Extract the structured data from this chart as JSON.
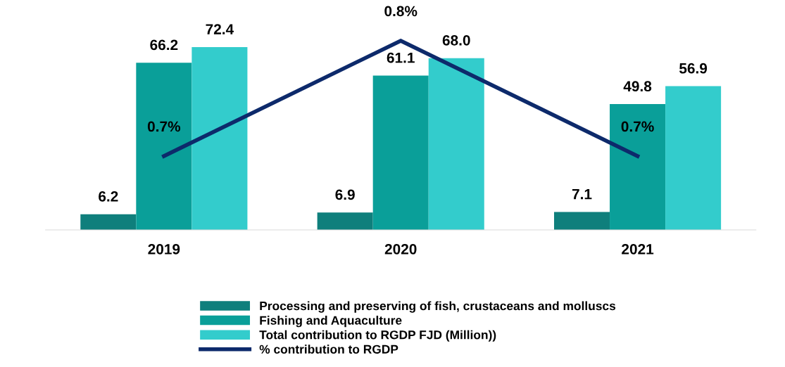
{
  "chart_data": {
    "type": "bar",
    "categories": [
      "2019",
      "2020",
      "2021"
    ],
    "series": [
      {
        "name": "Processing and preserving of fish, crustaceans and molluscs",
        "color": "#0f7f7c",
        "values": [
          6.2,
          6.9,
          7.1
        ]
      },
      {
        "name": "Fishing and Aquaculture",
        "color": "#0a9f99",
        "values": [
          66.2,
          61.1,
          49.8
        ]
      },
      {
        "name": "Total contribution to RGDP FJD (Million))",
        "color": "#33cccc",
        "values": [
          72.4,
          68.0,
          56.9
        ],
        "value_labels": [
          "72.4",
          "68.0",
          "56.9"
        ]
      },
      {
        "name": "% contribution to RGDP",
        "type": "line",
        "axis": "y2",
        "color": "#0d2a6b",
        "values": [
          0.7,
          0.8,
          0.7
        ],
        "value_labels": [
          "0.7%",
          "0.8%",
          "0.7%"
        ]
      }
    ],
    "relative": false,
    "data_labels": true,
    "grid": false,
    "legend": "bottom",
    "marker": "none",
    "line_style": "solid",
    "tick_labels": "x"
  }
}
